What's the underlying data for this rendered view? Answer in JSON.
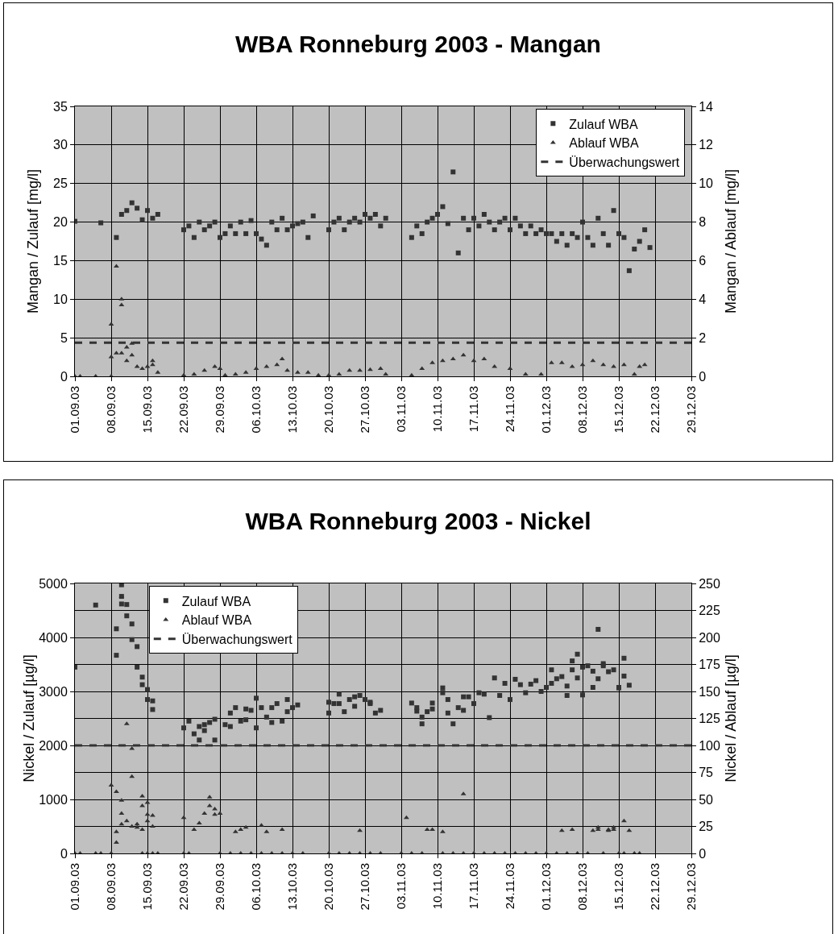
{
  "chart_data": [
    {
      "type": "scatter",
      "title": "WBA Ronneburg 2003 - Mangan",
      "ylabel": "Mangan / Zulauf [mg/l]",
      "y2label": "Mangan / Ablauf [mg/l]",
      "grid": true,
      "legend": "top right",
      "xlim": [
        "2003-09-01",
        "2003-12-29"
      ],
      "xticks": [
        {
          "value": "2003-09-01",
          "label": "01.09.03"
        },
        {
          "value": "2003-09-08",
          "label": "08.09.03"
        },
        {
          "value": "2003-09-15",
          "label": "15.09.03"
        },
        {
          "value": "2003-09-22",
          "label": "22.09.03"
        },
        {
          "value": "2003-09-29",
          "label": "29.09.03"
        },
        {
          "value": "2003-10-06",
          "label": "06.10.03"
        },
        {
          "value": "2003-10-13",
          "label": "13.10.03"
        },
        {
          "value": "2003-10-20",
          "label": "20.10.03"
        },
        {
          "value": "2003-10-27",
          "label": "27.10.03"
        },
        {
          "value": "2003-11-03",
          "label": "03.11.03"
        },
        {
          "value": "2003-11-10",
          "label": "10.11.03"
        },
        {
          "value": "2003-11-17",
          "label": "17.11.03"
        },
        {
          "value": "2003-11-24",
          "label": "24.11.03"
        },
        {
          "value": "2003-12-01",
          "label": "01.12.03"
        },
        {
          "value": "2003-12-08",
          "label": "08.12.03"
        },
        {
          "value": "2003-12-15",
          "label": "15.12.03"
        },
        {
          "value": "2003-12-22",
          "label": "22.12.03"
        },
        {
          "value": "2003-12-29",
          "label": "29.12.03"
        }
      ],
      "ylim": [
        0,
        35
      ],
      "yticks": [
        0,
        5,
        10,
        15,
        20,
        25,
        30,
        35
      ],
      "y2lim": [
        0,
        14
      ],
      "y2ticks": [
        0,
        2,
        4,
        6,
        8,
        10,
        12,
        14
      ],
      "ref_lines": [
        {
          "axis": "y2",
          "value": 1.75,
          "label": "Überwachungswert",
          "color": "#333333",
          "line_style": "dashed"
        }
      ],
      "series": [
        {
          "name": "Zulauf WBA",
          "color": "#333333",
          "marker": "square",
          "axis": "y",
          "x": [
            "2003-09-01",
            "2003-09-06",
            "2003-09-09",
            "2003-09-10",
            "2003-09-11",
            "2003-09-12",
            "2003-09-13",
            "2003-09-14",
            "2003-09-15",
            "2003-09-16",
            "2003-09-17",
            "2003-09-22",
            "2003-09-23",
            "2003-09-24",
            "2003-09-25",
            "2003-09-26",
            "2003-09-27",
            "2003-09-28",
            "2003-09-29",
            "2003-09-30",
            "2003-10-01",
            "2003-10-02",
            "2003-10-03",
            "2003-10-04",
            "2003-10-05",
            "2003-10-06",
            "2003-10-07",
            "2003-10-08",
            "2003-10-09",
            "2003-10-10",
            "2003-10-11",
            "2003-10-12",
            "2003-10-13",
            "2003-10-14",
            "2003-10-15",
            "2003-10-16",
            "2003-10-17",
            "2003-10-20",
            "2003-10-21",
            "2003-10-22",
            "2003-10-23",
            "2003-10-24",
            "2003-10-25",
            "2003-10-26",
            "2003-10-27",
            "2003-10-28",
            "2003-10-29",
            "2003-10-30",
            "2003-10-31",
            "2003-11-05",
            "2003-11-06",
            "2003-11-07",
            "2003-11-08",
            "2003-11-09",
            "2003-11-10",
            "2003-11-11",
            "2003-11-12",
            "2003-11-13",
            "2003-11-14",
            "2003-11-15",
            "2003-11-16",
            "2003-11-17",
            "2003-11-18",
            "2003-11-19",
            "2003-11-20",
            "2003-11-21",
            "2003-11-22",
            "2003-11-23",
            "2003-11-24",
            "2003-11-25",
            "2003-11-26",
            "2003-11-27",
            "2003-11-28",
            "2003-11-29",
            "2003-11-30",
            "2003-12-01",
            "2003-12-02",
            "2003-12-03",
            "2003-12-04",
            "2003-12-05",
            "2003-12-06",
            "2003-12-07",
            "2003-12-08",
            "2003-12-09",
            "2003-12-10",
            "2003-12-11",
            "2003-12-12",
            "2003-12-13",
            "2003-12-14",
            "2003-12-15",
            "2003-12-16",
            "2003-12-17",
            "2003-12-18",
            "2003-12-19",
            "2003-12-20",
            "2003-12-21"
          ],
          "values": [
            20.1,
            19.9,
            18,
            21,
            21.5,
            22.5,
            21.8,
            20.3,
            21.5,
            20.5,
            21,
            19,
            19.5,
            18,
            20,
            19,
            19.5,
            20,
            18,
            18.5,
            19.5,
            18.5,
            20,
            18.5,
            20.2,
            18.5,
            17.8,
            17,
            20,
            19,
            20.5,
            19,
            19.5,
            19.8,
            20,
            18,
            20.8,
            19,
            20,
            20.5,
            19,
            20,
            20.5,
            20,
            21,
            20.5,
            21,
            19.5,
            20.5,
            18,
            19.5,
            18.5,
            20,
            20.5,
            21,
            22,
            19.8,
            26.5,
            16,
            20.5,
            19,
            20.5,
            19.5,
            21,
            20,
            19,
            20,
            20.5,
            19,
            20.5,
            19.5,
            18.5,
            19.5,
            18.5,
            19,
            18.5,
            18.5,
            17.5,
            18.5,
            17,
            18.5,
            18,
            20,
            18,
            17,
            20.5,
            18.5,
            17,
            21.5,
            18.5,
            18,
            13.7,
            16.5,
            17.5,
            19,
            16.7
          ]
        },
        {
          "name": "Ablauf WBA",
          "color": "#333333",
          "marker": "triangle",
          "axis": "y2",
          "x": [
            "2003-09-01",
            "2003-09-02",
            "2003-09-05",
            "2003-09-08",
            "2003-09-08",
            "2003-09-08",
            "2003-09-09",
            "2003-09-09",
            "2003-09-10",
            "2003-09-10",
            "2003-09-10",
            "2003-09-11",
            "2003-09-11",
            "2003-09-12",
            "2003-09-12",
            "2003-09-13",
            "2003-09-14",
            "2003-09-15",
            "2003-09-16",
            "2003-09-16",
            "2003-09-17",
            "2003-09-22",
            "2003-09-24",
            "2003-09-26",
            "2003-09-28",
            "2003-09-29",
            "2003-09-30",
            "2003-10-02",
            "2003-10-04",
            "2003-10-06",
            "2003-10-08",
            "2003-10-10",
            "2003-10-11",
            "2003-10-12",
            "2003-10-14",
            "2003-10-16",
            "2003-10-18",
            "2003-10-20",
            "2003-10-22",
            "2003-10-24",
            "2003-10-26",
            "2003-10-28",
            "2003-10-30",
            "2003-10-31",
            "2003-11-05",
            "2003-11-07",
            "2003-11-09",
            "2003-11-11",
            "2003-11-13",
            "2003-11-15",
            "2003-11-17",
            "2003-11-19",
            "2003-11-21",
            "2003-11-24",
            "2003-11-27",
            "2003-11-30",
            "2003-12-02",
            "2003-12-04",
            "2003-12-06",
            "2003-12-08",
            "2003-12-10",
            "2003-12-12",
            "2003-12-14",
            "2003-12-16",
            "2003-12-18",
            "2003-12-19",
            "2003-12-20"
          ],
          "values": [
            0,
            0,
            0,
            0,
            1,
            2.7,
            5.7,
            1.2,
            3.7,
            4,
            1.2,
            1.5,
            0.8,
            1.7,
            1.1,
            0.5,
            0.4,
            0.5,
            0.6,
            0.8,
            0.2,
            0.05,
            0.1,
            0.3,
            0.5,
            0.4,
            0.05,
            0.1,
            0.2,
            0.4,
            0.5,
            0.6,
            0.9,
            0.3,
            0.2,
            0.2,
            0.05,
            0.05,
            0.1,
            0.3,
            0.3,
            0.35,
            0.4,
            0.1,
            0.05,
            0.4,
            0.7,
            0.8,
            0.9,
            1.1,
            0.8,
            0.9,
            0.5,
            0.4,
            0.1,
            0.1,
            0.7,
            0.7,
            0.5,
            0.6,
            0.8,
            0.6,
            0.5,
            0.6,
            0.1,
            0.5,
            0.6
          ]
        }
      ]
    },
    {
      "type": "scatter",
      "title": "WBA Ronneburg 2003 - Nickel",
      "ylabel": "Nickel / Zulauf [µg/l]",
      "y2label": "Nickel / Ablauf [µg/l]",
      "grid": true,
      "legend": "top left",
      "xlim": [
        "2003-09-01",
        "2003-12-29"
      ],
      "xticks": [
        {
          "value": "2003-09-01",
          "label": "01.09.03"
        },
        {
          "value": "2003-09-08",
          "label": "08.09.03"
        },
        {
          "value": "2003-09-15",
          "label": "15.09.03"
        },
        {
          "value": "2003-09-22",
          "label": "22.09.03"
        },
        {
          "value": "2003-09-29",
          "label": "29.09.03"
        },
        {
          "value": "2003-10-06",
          "label": "06.10.03"
        },
        {
          "value": "2003-10-13",
          "label": "13.10.03"
        },
        {
          "value": "2003-10-20",
          "label": "20.10.03"
        },
        {
          "value": "2003-10-27",
          "label": "27.10.03"
        },
        {
          "value": "2003-11-03",
          "label": "03.11.03"
        },
        {
          "value": "2003-11-10",
          "label": "10.11.03"
        },
        {
          "value": "2003-11-17",
          "label": "17.11.03"
        },
        {
          "value": "2003-11-24",
          "label": "24.11.03"
        },
        {
          "value": "2003-12-01",
          "label": "01.12.03"
        },
        {
          "value": "2003-12-08",
          "label": "08.12.03"
        },
        {
          "value": "2003-12-15",
          "label": "15.12.03"
        },
        {
          "value": "2003-12-22",
          "label": "22.12.03"
        },
        {
          "value": "2003-12-29",
          "label": "29.12.03"
        }
      ],
      "ylim": [
        0,
        5000
      ],
      "yticks": [
        0,
        1000,
        2000,
        3000,
        4000,
        5000
      ],
      "y2lim": [
        0,
        250
      ],
      "y2ticks": [
        0,
        25,
        50,
        75,
        100,
        125,
        150,
        175,
        200,
        225,
        250
      ],
      "ref_lines": [
        {
          "axis": "y",
          "value": 2000,
          "label": "Überwachungswert",
          "color": "#333333",
          "line_style": "dashed"
        }
      ],
      "series": [
        {
          "name": "Zulauf WBA",
          "color": "#333333",
          "marker": "square",
          "axis": "y",
          "x": [
            "2003-09-01",
            "2003-09-05",
            "2003-09-09",
            "2003-09-09",
            "2003-09-10",
            "2003-09-10",
            "2003-09-10",
            "2003-09-11",
            "2003-09-11",
            "2003-09-12",
            "2003-09-12",
            "2003-09-13",
            "2003-09-13",
            "2003-09-14",
            "2003-09-14",
            "2003-09-15",
            "2003-09-15",
            "2003-09-16",
            "2003-09-16",
            "2003-09-22",
            "2003-09-23",
            "2003-09-24",
            "2003-09-25",
            "2003-09-25",
            "2003-09-26",
            "2003-09-26",
            "2003-09-27",
            "2003-09-28",
            "2003-09-28",
            "2003-09-30",
            "2003-10-01",
            "2003-10-01",
            "2003-10-02",
            "2003-10-03",
            "2003-10-04",
            "2003-10-04",
            "2003-10-05",
            "2003-10-06",
            "2003-10-06",
            "2003-10-07",
            "2003-10-08",
            "2003-10-09",
            "2003-10-09",
            "2003-10-10",
            "2003-10-11",
            "2003-10-12",
            "2003-10-12",
            "2003-10-13",
            "2003-10-14",
            "2003-10-20",
            "2003-10-20",
            "2003-10-21",
            "2003-10-22",
            "2003-10-22",
            "2003-10-23",
            "2003-10-24",
            "2003-10-25",
            "2003-10-25",
            "2003-10-26",
            "2003-10-27",
            "2003-10-28",
            "2003-10-28",
            "2003-10-29",
            "2003-10-30",
            "2003-11-05",
            "2003-11-06",
            "2003-11-06",
            "2003-11-07",
            "2003-11-07",
            "2003-11-08",
            "2003-11-09",
            "2003-11-09",
            "2003-11-11",
            "2003-11-11",
            "2003-11-12",
            "2003-11-12",
            "2003-11-13",
            "2003-11-14",
            "2003-11-15",
            "2003-11-15",
            "2003-11-16",
            "2003-11-17",
            "2003-11-18",
            "2003-11-19",
            "2003-11-20",
            "2003-11-21",
            "2003-11-22",
            "2003-11-23",
            "2003-11-24",
            "2003-11-25",
            "2003-11-26",
            "2003-11-27",
            "2003-11-28",
            "2003-11-29",
            "2003-11-30",
            "2003-12-01",
            "2003-12-02",
            "2003-12-02",
            "2003-12-03",
            "2003-12-04",
            "2003-12-05",
            "2003-12-05",
            "2003-12-06",
            "2003-12-06",
            "2003-12-07",
            "2003-12-07",
            "2003-12-08",
            "2003-12-08",
            "2003-12-09",
            "2003-12-10",
            "2003-12-10",
            "2003-12-11",
            "2003-12-11",
            "2003-12-12",
            "2003-12-12",
            "2003-12-13",
            "2003-12-14",
            "2003-12-15",
            "2003-12-15",
            "2003-12-16",
            "2003-12-16",
            "2003-12-17"
          ],
          "values": [
            3450,
            4600,
            3670,
            4160,
            4975,
            4620,
            4760,
            4610,
            4400,
            4250,
            3960,
            3830,
            3450,
            3265,
            3125,
            3035,
            2850,
            2825,
            2665,
            2325,
            2450,
            2215,
            2100,
            2350,
            2275,
            2385,
            2425,
            2100,
            2485,
            2385,
            2600,
            2350,
            2700,
            2450,
            2675,
            2475,
            2650,
            2875,
            2325,
            2700,
            2525,
            2425,
            2700,
            2775,
            2450,
            2850,
            2625,
            2700,
            2750,
            2600,
            2800,
            2775,
            2950,
            2775,
            2625,
            2850,
            2725,
            2900,
            2925,
            2850,
            2775,
            2800,
            2600,
            2650,
            2785,
            2700,
            2635,
            2400,
            2525,
            2625,
            2785,
            2675,
            2975,
            3065,
            2600,
            2850,
            2400,
            2700,
            2900,
            2650,
            2900,
            2775,
            2975,
            2950,
            2515,
            3250,
            2925,
            3150,
            2850,
            3225,
            3125,
            2975,
            3135,
            3200,
            3000,
            3075,
            3150,
            3400,
            3235,
            3275,
            2925,
            3100,
            3565,
            3400,
            3690,
            3250,
            2935,
            3450,
            3475,
            3075,
            3375,
            4150,
            3235,
            3475,
            3515,
            3365,
            3400,
            3065,
            3075,
            3285,
            3615,
            3115
          ]
        },
        {
          "name": "Ablauf WBA",
          "color": "#333333",
          "marker": "triangle",
          "axis": "y2",
          "x": [
            "2003-09-01",
            "2003-09-02",
            "2003-09-05",
            "2003-09-06",
            "2003-09-08",
            "2003-09-08",
            "2003-09-09",
            "2003-09-09",
            "2003-09-09",
            "2003-09-10",
            "2003-09-10",
            "2003-09-10",
            "2003-09-10",
            "2003-09-11",
            "2003-09-11",
            "2003-09-12",
            "2003-09-12",
            "2003-09-12",
            "2003-09-13",
            "2003-09-13",
            "2003-09-14",
            "2003-09-14",
            "2003-09-14",
            "2003-09-14",
            "2003-09-15",
            "2003-09-15",
            "2003-09-15",
            "2003-09-15",
            "2003-09-16",
            "2003-09-16",
            "2003-09-16",
            "2003-09-17",
            "2003-09-22",
            "2003-09-22",
            "2003-09-23",
            "2003-09-24",
            "2003-09-25",
            "2003-09-26",
            "2003-09-27",
            "2003-09-27",
            "2003-09-28",
            "2003-09-28",
            "2003-09-29",
            "2003-09-29",
            "2003-10-01",
            "2003-10-02",
            "2003-10-03",
            "2003-10-03",
            "2003-10-04",
            "2003-10-05",
            "2003-10-07",
            "2003-10-07",
            "2003-10-08",
            "2003-10-09",
            "2003-10-11",
            "2003-10-11",
            "2003-10-13",
            "2003-10-15",
            "2003-10-20",
            "2003-10-22",
            "2003-10-24",
            "2003-10-26",
            "2003-10-26",
            "2003-10-28",
            "2003-10-30",
            "2003-11-03",
            "2003-11-04",
            "2003-11-05",
            "2003-11-07",
            "2003-11-08",
            "2003-11-09",
            "2003-11-11",
            "2003-11-11",
            "2003-11-13",
            "2003-11-15",
            "2003-11-15",
            "2003-11-17",
            "2003-11-19",
            "2003-11-21",
            "2003-11-23",
            "2003-11-25",
            "2003-11-27",
            "2003-11-29",
            "2003-12-01",
            "2003-12-03",
            "2003-12-04",
            "2003-12-05",
            "2003-12-06",
            "2003-12-07",
            "2003-12-09",
            "2003-12-10",
            "2003-12-11",
            "2003-12-11",
            "2003-12-12",
            "2003-12-13",
            "2003-12-13",
            "2003-12-14",
            "2003-12-14",
            "2003-12-15",
            "2003-12-16",
            "2003-12-16",
            "2003-12-17",
            "2003-12-18",
            "2003-12-19"
          ],
          "values": [
            0,
            0,
            0,
            0,
            0,
            63,
            57,
            20,
            10,
            238,
            49,
            37,
            27,
            120,
            30,
            97,
            71,
            25,
            24,
            27,
            22,
            53,
            44,
            0,
            47,
            36,
            30,
            0,
            35,
            25,
            0,
            0,
            33,
            0,
            0,
            22,
            28,
            37,
            44,
            52,
            41,
            36,
            37,
            0,
            0,
            20,
            22,
            0,
            24,
            0,
            26,
            0,
            20,
            0,
            22,
            0,
            0,
            0,
            0,
            0,
            0,
            21,
            0,
            0,
            0,
            0,
            33,
            0,
            0,
            22,
            22,
            20,
            0,
            0,
            55,
            0,
            0,
            0,
            0,
            0,
            0,
            0,
            0,
            0,
            0,
            21,
            0,
            22,
            0,
            0,
            21,
            22,
            24,
            0,
            21,
            22,
            22,
            24,
            0,
            30,
            0,
            21,
            0,
            0
          ]
        }
      ]
    }
  ]
}
